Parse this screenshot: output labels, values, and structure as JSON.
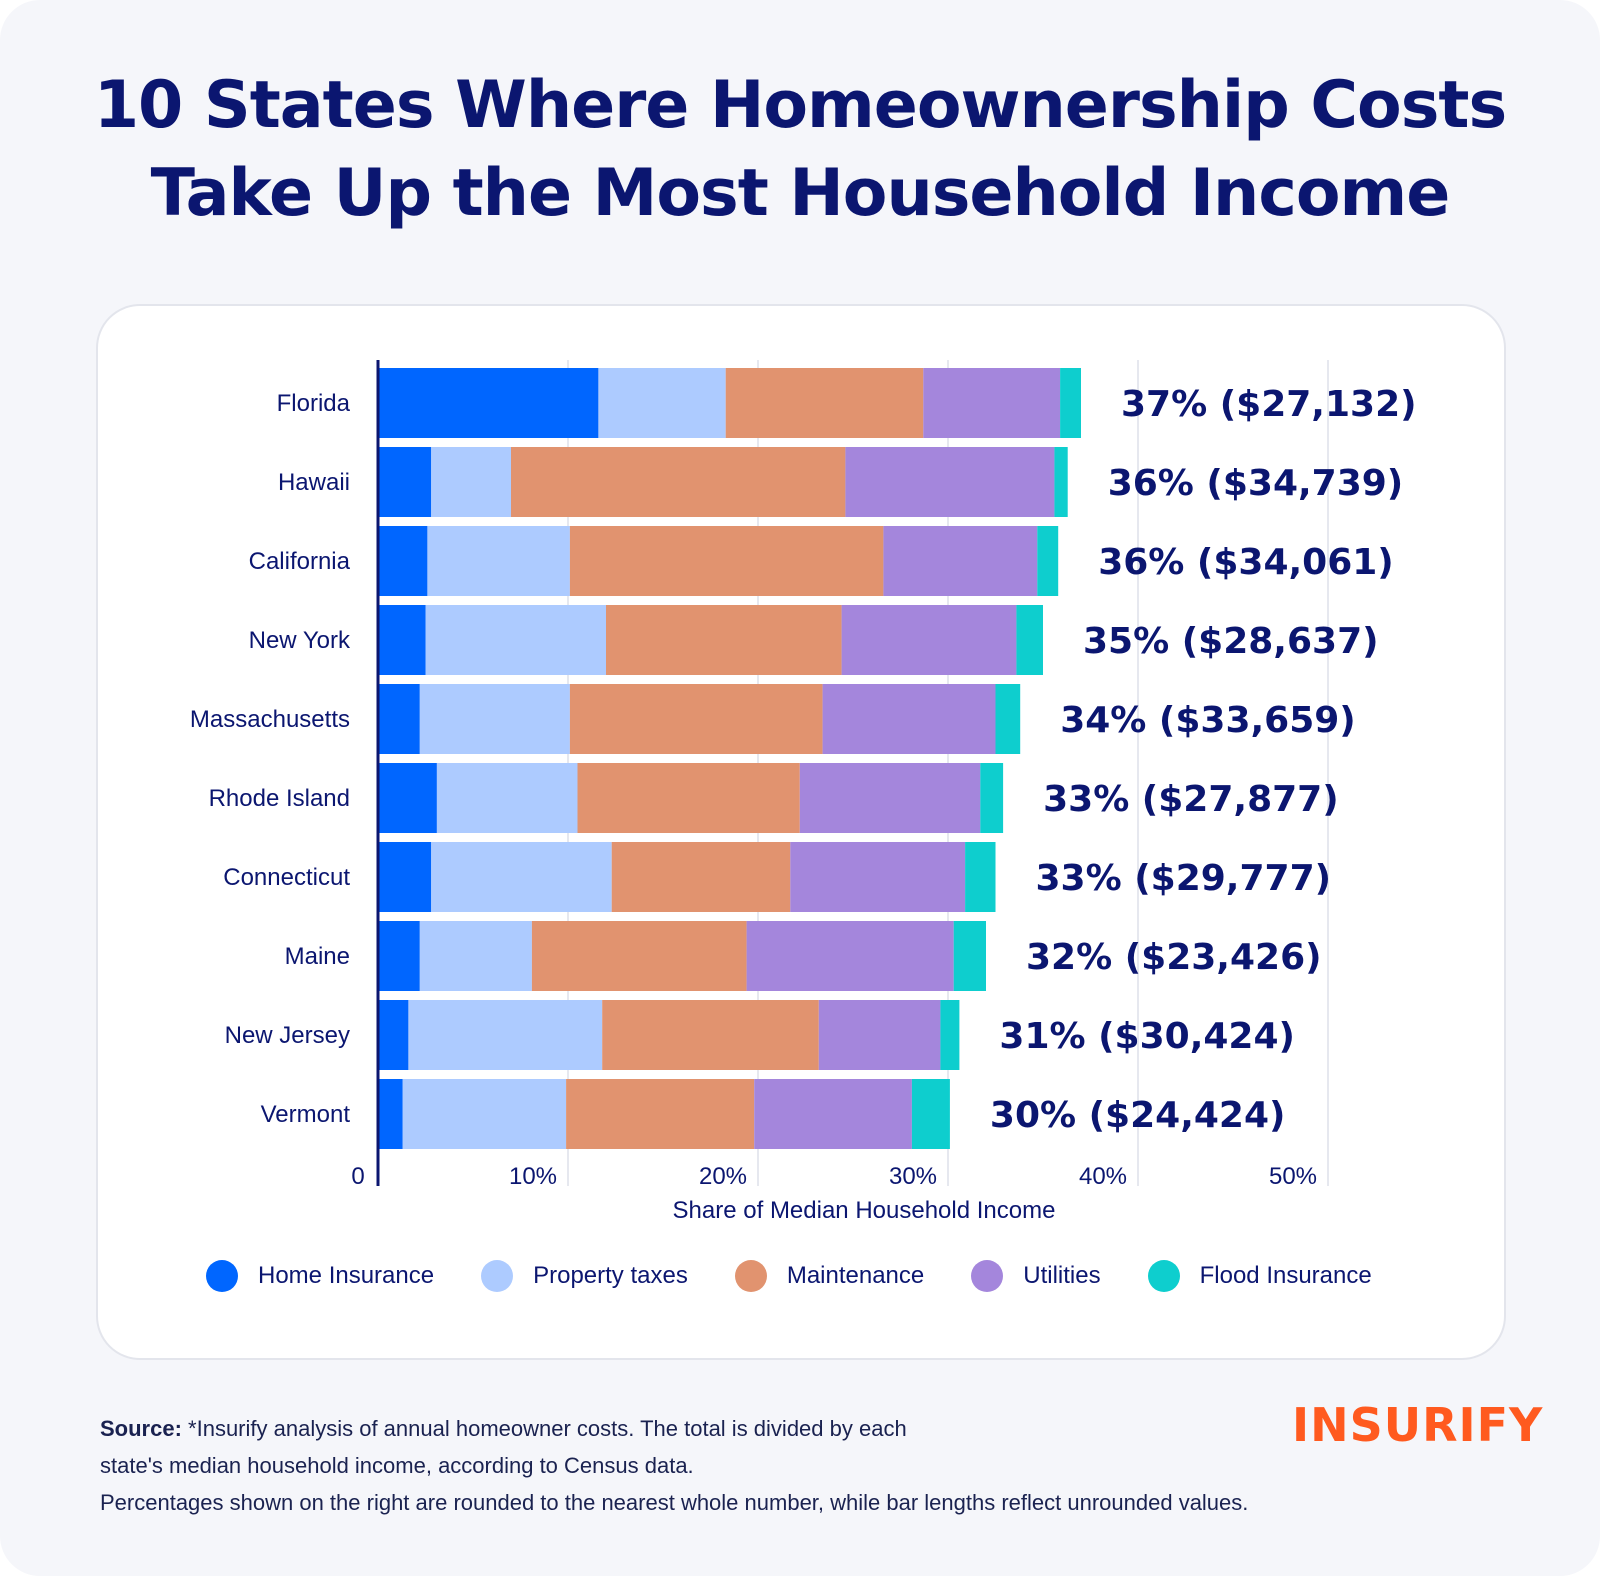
{
  "title_lines": [
    "10 States Where Homeownership Costs",
    "Take Up the Most Household Income"
  ],
  "chart_data": {
    "type": "bar",
    "orientation": "horizontal",
    "stacked": true,
    "categories": [
      "Florida",
      "Hawaii",
      "California",
      "New York",
      "Massachusetts",
      "Rhode Island",
      "Connecticut",
      "Maine",
      "New Jersey",
      "Vermont"
    ],
    "series": [
      {
        "name": "Home Insurance",
        "color": "#0066ff",
        "values": [
          11.6,
          2.8,
          2.6,
          2.5,
          2.2,
          3.1,
          2.8,
          2.2,
          1.6,
          1.3
        ]
      },
      {
        "name": "Property taxes",
        "color": "#adcbff",
        "values": [
          6.7,
          4.2,
          7.5,
          9.5,
          7.9,
          7.4,
          9.5,
          5.9,
          10.2,
          8.6
        ]
      },
      {
        "name": "Maintenance",
        "color": "#e1936f",
        "values": [
          10.4,
          17.6,
          16.5,
          12.4,
          13.3,
          11.7,
          9.4,
          11.3,
          11.4,
          9.9
        ]
      },
      {
        "name": "Utilities",
        "color": "#a486dc",
        "values": [
          7.2,
          11.0,
          8.1,
          9.2,
          9.1,
          9.5,
          9.2,
          10.9,
          6.4,
          8.3
        ]
      },
      {
        "name": "Flood Insurance",
        "color": "#0ecece",
        "values": [
          1.1,
          0.7,
          1.1,
          1.4,
          1.3,
          1.2,
          1.6,
          1.7,
          1.0,
          2.0
        ]
      }
    ],
    "data_labels": [
      "37% ($27,132)",
      "36% ($34,739)",
      "36% ($34,061)",
      "35% ($28,637)",
      "34% ($33,659)",
      "33% ($27,877)",
      "33% ($29,777)",
      "32% ($23,426)",
      "31% ($30,424)",
      "30% ($24,424)"
    ],
    "x_ticks": [
      0,
      10,
      20,
      30,
      40,
      50
    ],
    "x_tick_labels": [
      "0",
      "10%",
      "20%",
      "30%",
      "40%",
      "50%"
    ],
    "xlim": [
      0,
      50
    ],
    "xlabel": "Share of Median Household Income",
    "grid": true,
    "legend_position": "bottom"
  },
  "source": {
    "label": "Source:",
    "line1": " *Insurify analysis of annual homeowner costs. The total is divided by each",
    "line2": "state's median household income, according to Census data.",
    "line3": "Percentages shown on the right are rounded to the nearest whole number, while bar lengths reflect unrounded values."
  },
  "logo": "INSURIFY"
}
